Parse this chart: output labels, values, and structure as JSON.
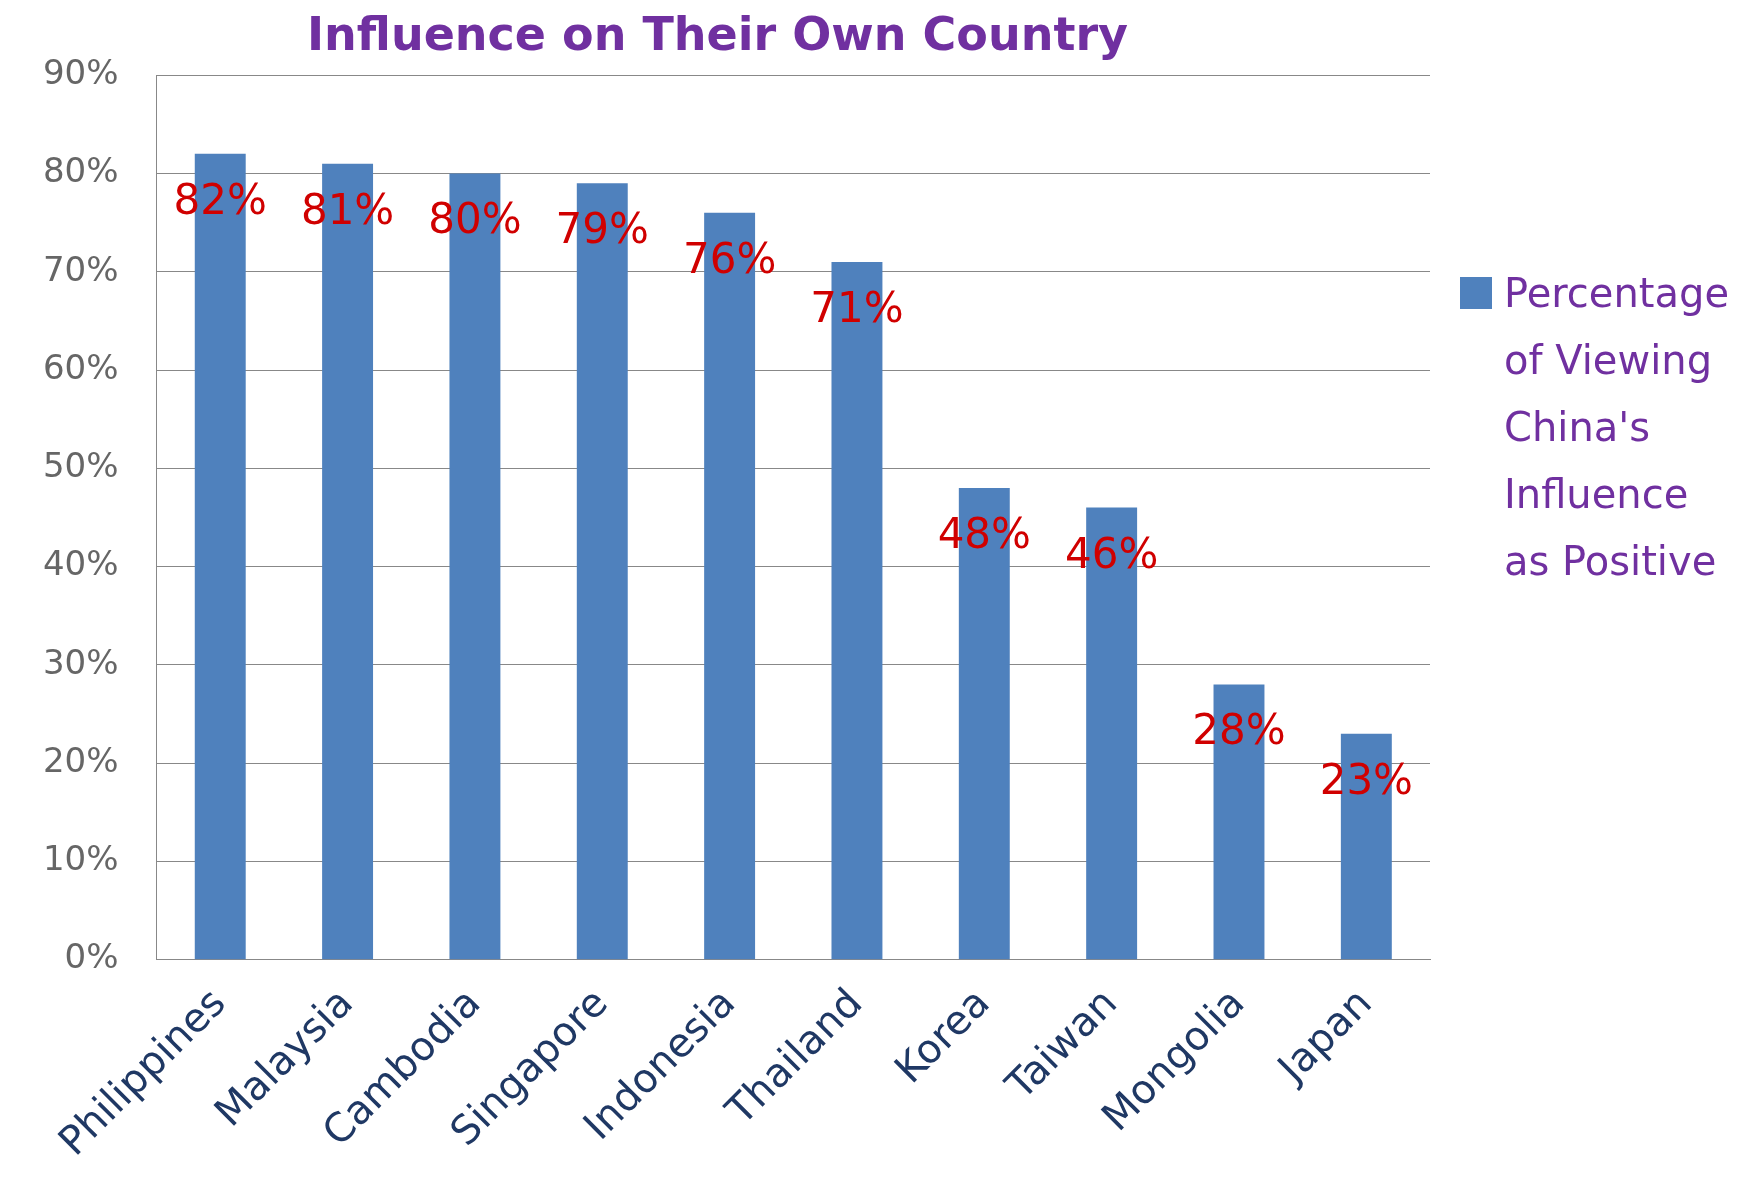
{
  "chart_data": {
    "type": "bar",
    "title": "Influence on Their Own Country",
    "categories": [
      "Philippines",
      "Malaysia",
      "Cambodia",
      "Singapore",
      "Indonesia",
      "Thailand",
      "Korea",
      "Taiwan",
      "Mongolia",
      "Japan"
    ],
    "series": [
      {
        "name": "Percentage of Viewing China's Influence as Positive",
        "color": "#4f81bd",
        "values": [
          82,
          81,
          80,
          79,
          76,
          71,
          48,
          46,
          28,
          23
        ],
        "value_labels": [
          "82%",
          "81%",
          "80%",
          "79%",
          "76%",
          "71%",
          "48%",
          "46%",
          "28%",
          "23%"
        ]
      }
    ],
    "ylim": [
      0,
      90
    ],
    "yticks": [
      {
        "value": 0,
        "label": "0%"
      },
      {
        "value": 10,
        "label": "10%"
      },
      {
        "value": 20,
        "label": "20%"
      },
      {
        "value": 30,
        "label": "30%"
      },
      {
        "value": 40,
        "label": "40%"
      },
      {
        "value": 50,
        "label": "50%"
      },
      {
        "value": 60,
        "label": "60%"
      },
      {
        "value": 70,
        "label": "70%"
      },
      {
        "value": 80,
        "label": "80%"
      },
      {
        "value": 90,
        "label": "90%"
      }
    ],
    "grid": "y",
    "legend": "right"
  }
}
